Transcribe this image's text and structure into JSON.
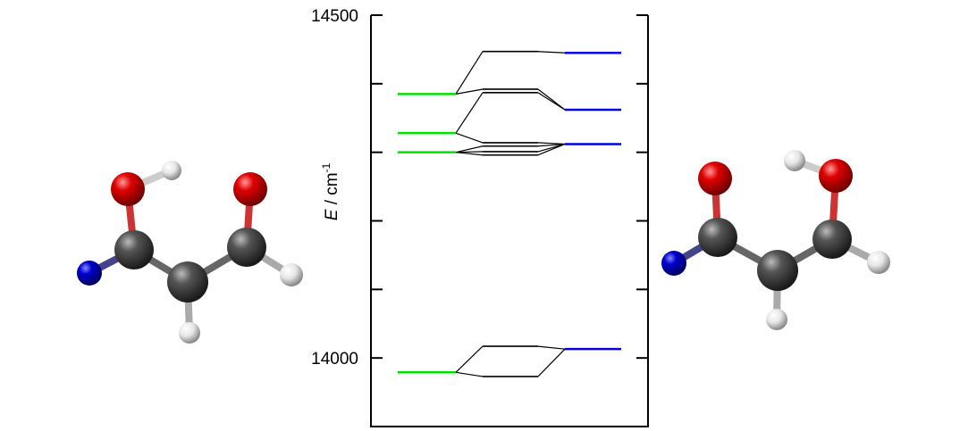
{
  "chart_data": {
    "type": "levels",
    "ylabel": {
      "symbol": "E",
      "unit": "/ cm",
      "exponent": "-1"
    },
    "ylim": [
      13900,
      14500
    ],
    "yticks": [
      14000,
      {
        "value": 14100,
        "label": null
      },
      {
        "value": 14200,
        "label": null
      },
      {
        "value": 14300,
        "label": null
      },
      {
        "value": 14400,
        "label": null
      },
      14500
    ],
    "series": [
      {
        "color": "#00e000",
        "values": [
          14385,
          14328,
          14300,
          13979
        ]
      },
      {
        "color": "#000000",
        "values": [
          14447,
          14392,
          14387,
          14314,
          14309,
          14301,
          14296,
          14017,
          13973
        ]
      },
      {
        "color": "#0000e0",
        "values": [
          14445,
          14362,
          14312,
          14013
        ]
      }
    ]
  }
}
